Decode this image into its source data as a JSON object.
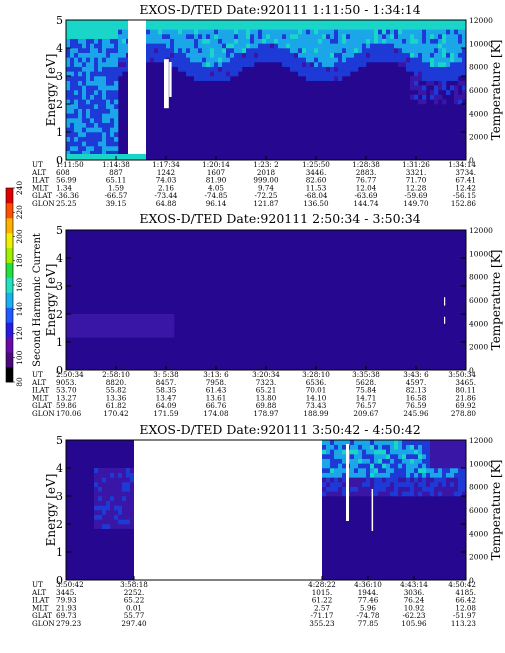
{
  "colors": {
    "background": "#26078f",
    "mid": "#3a16a6",
    "blue": "#1e3ad6",
    "cyan": "#1aa6e8",
    "aqua": "#19d6c8",
    "white": "#ffffff"
  },
  "colorbar": {
    "label": "Second Harmonic Current",
    "ticks": [
      "80",
      "100",
      "120",
      "140",
      "160",
      "180",
      "200",
      "220",
      "240"
    ],
    "colors": [
      "#000000",
      "#4a0a7a",
      "#6a0aa8",
      "#2a1ae0",
      "#1e5aff",
      "#1ab0f0",
      "#22e0c0",
      "#22e040",
      "#a0f000",
      "#f0f000",
      "#ffb000",
      "#ff5000",
      "#e00000"
    ]
  },
  "chart_data": [
    {
      "type": "heatmap",
      "title": "EXOS-D/TED    Date:920111   1:11:50 - 1:34:14",
      "ylabel": "Energy [eV]",
      "y2label": "Temperature [K]",
      "ylim": [
        0,
        5
      ],
      "y2lim": [
        0,
        12000
      ],
      "yticks": [
        "0",
        "1",
        "2",
        "3",
        "4",
        "5"
      ],
      "y2ticks": [
        "0",
        "2000",
        "4000",
        "6000",
        "8000",
        "10000",
        "12000"
      ],
      "row_labels": [
        "UT",
        "ALT",
        "ILAT",
        "MLT",
        "GLAT",
        "GLON"
      ],
      "columns": [
        [
          "1:11:50",
          "608",
          "56.99",
          "1.34",
          "-36.36",
          "25.25"
        ],
        [
          "1:14:38",
          "887",
          "65.11",
          "1.59",
          "-66.57",
          "39.15"
        ],
        [
          "1:17:34",
          "1242",
          "74.03",
          "2.16",
          "-73.44",
          "64.88"
        ],
        [
          "1:20:14",
          "1607",
          "81.90",
          "4.05",
          "-74.85",
          "96.14"
        ],
        [
          "1:23: 2",
          "2018",
          "999.00",
          "9.74",
          "-72.25",
          "121.87"
        ],
        [
          "1:25:50",
          "3446.",
          "82.60",
          "11.53",
          "-68.04",
          "136.50"
        ],
        [
          "1:28:38",
          "2883.",
          "76.77",
          "12.04",
          "-63.69",
          "144.74"
        ],
        [
          "1:31:26",
          "3321.",
          "71.70",
          "12.28",
          "-59.69",
          "149.70"
        ],
        [
          "1:34:14",
          "3734.",
          "67.41",
          "12.42",
          "-56.15",
          "152.86"
        ]
      ]
    },
    {
      "type": "heatmap",
      "title": "EXOS-D/TED    Date:920111   2:50:34 - 3:50:34",
      "ylabel": "Energy [eV]",
      "y2label": "Temperature [K]",
      "ylim": [
        0,
        5
      ],
      "y2lim": [
        0,
        12000
      ],
      "yticks": [
        "0",
        "1",
        "2",
        "3",
        "4",
        "5"
      ],
      "y2ticks": [
        "0",
        "2000",
        "4000",
        "6000",
        "8000",
        "10000",
        "12000"
      ],
      "row_labels": [
        "UT",
        "ALT",
        "ILAT",
        "MLT",
        "GLAT",
        "GLON"
      ],
      "columns": [
        [
          "2:50:34",
          "9053.",
          "53.70",
          "13.27",
          "59.86",
          "170.06"
        ],
        [
          "2:58:10",
          "8820.",
          "55.82",
          "13.36",
          "61.82",
          "170.42"
        ],
        [
          "3: 5:38",
          "8457.",
          "58.35",
          "13.47",
          "64.09",
          "171.59"
        ],
        [
          "3:13: 6",
          "7958.",
          "61.43",
          "13.61",
          "66.76",
          "174.08"
        ],
        [
          "3:20:34",
          "7323.",
          "65.21",
          "13.80",
          "69.88",
          "178.97"
        ],
        [
          "3:28:10",
          "6536.",
          "70.01",
          "14.10",
          "73.43",
          "188.99"
        ],
        [
          "3:35:38",
          "5628.",
          "75.84",
          "14.71",
          "76.57",
          "209.67"
        ],
        [
          "3:43: 6",
          "4597.",
          "82.13",
          "16.58",
          "76.59",
          "245.96"
        ],
        [
          "3:50:34",
          "3465.",
          "80.11",
          "21.86",
          "69.92",
          "278.80"
        ]
      ]
    },
    {
      "type": "heatmap",
      "title": "EXOS-D/TED    Date:920111   3:50:42 - 4:50:42",
      "ylabel": "Energy [eV]",
      "y2label": "Temperature [K]",
      "ylim": [
        0,
        5
      ],
      "y2lim": [
        0,
        12000
      ],
      "yticks": [
        "0",
        "1",
        "2",
        "3",
        "4",
        "5"
      ],
      "y2ticks": [
        "0",
        "2000",
        "4000",
        "6000",
        "8000",
        "10000",
        "12000"
      ],
      "row_labels": [
        "UT",
        "ALT",
        "ILAT",
        "MLT",
        "GLAT",
        "GLON"
      ],
      "columns": [
        [
          "3:50:42",
          "3445.",
          "79.93",
          "21.93",
          "69.73",
          "279.23"
        ],
        [
          "3:58:18",
          "2252.",
          "65.22",
          "0.01",
          "55.77",
          "297.40"
        ],
        [
          "4:28:22",
          "1015.",
          "61.22",
          "2.57",
          "-71.17",
          "355.23"
        ],
        [
          "4:36:10",
          "1944.",
          "77.46",
          "5.96",
          "-74.78",
          "77.85"
        ],
        [
          "4:43:14",
          "3036.",
          "76.24",
          "10.92",
          "-62.23",
          "105.96"
        ],
        [
          "4:50:42",
          "4185.",
          "66.42",
          "12.08",
          "-51.97",
          "113.23"
        ]
      ],
      "data_gap": [
        "3:58:18",
        "4:28:22"
      ]
    }
  ]
}
